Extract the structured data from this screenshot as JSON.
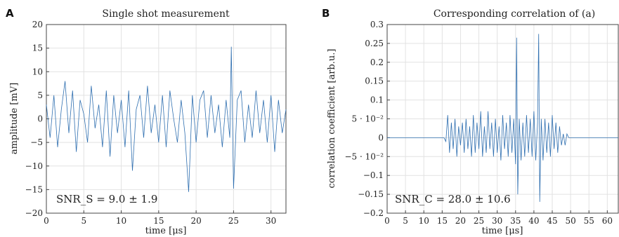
{
  "chart_data": [
    {
      "panel": "A",
      "type": "line",
      "title": "Single shot measurement",
      "xlabel": "time [μs]",
      "ylabel": "amplitude [mV]",
      "xlim": [
        0,
        32
      ],
      "ylim": [
        -20,
        20
      ],
      "xticks": [
        0,
        5,
        10,
        15,
        20,
        25,
        30
      ],
      "xtick_labels": [
        "0",
        "5",
        "10",
        "15",
        "20",
        "25",
        "30"
      ],
      "yticks": [
        -20,
        -15,
        -10,
        -5,
        0,
        5,
        10,
        15,
        20
      ],
      "ytick_labels": [
        "−20",
        "−15",
        "−10",
        "−5",
        "0",
        "5",
        "10",
        "15",
        "20"
      ],
      "grid": true,
      "annotation": "SNR_S = 9.0 ± 1.9",
      "series": [
        {
          "color": "#2f6fb0",
          "x": [
            0.0,
            0.5,
            1.0,
            1.5,
            2.0,
            2.5,
            3.0,
            3.5,
            4.0,
            4.5,
            5.0,
            5.5,
            6.0,
            6.5,
            7.0,
            7.5,
            8.0,
            8.5,
            9.0,
            9.5,
            10.0,
            10.5,
            11.0,
            11.5,
            12.0,
            12.5,
            13.0,
            13.5,
            14.0,
            14.5,
            15.0,
            15.5,
            16.0,
            16.5,
            17.0,
            17.5,
            18.0,
            18.5,
            19.0,
            19.5,
            20.0,
            20.5,
            21.0,
            21.5,
            22.0,
            22.5,
            23.0,
            23.5,
            24.0,
            24.5,
            24.7,
            25.0,
            25.5,
            26.0,
            26.5,
            27.0,
            27.5,
            28.0,
            28.5,
            29.0,
            29.5,
            30.0,
            30.5,
            31.0,
            31.5,
            32.0
          ],
          "y": [
            3,
            -4,
            5,
            -6,
            2,
            8,
            -3,
            6,
            -7,
            4,
            1,
            -5,
            7,
            -2,
            3,
            -6,
            6,
            -8,
            5,
            -3,
            4,
            -6,
            6,
            -11,
            2,
            5,
            -4,
            7,
            -3,
            3,
            -5,
            5,
            -6,
            6,
            0,
            -5,
            4,
            -3,
            -15.5,
            5,
            -5,
            4,
            6,
            -4,
            5,
            -3,
            3,
            -6,
            4,
            -4,
            15.3,
            -14.8,
            4,
            6,
            -5,
            3,
            -4,
            6,
            -3,
            4,
            -5,
            5,
            -7,
            4,
            -3,
            2
          ]
        }
      ]
    },
    {
      "panel": "B",
      "type": "line",
      "title": "Corresponding correlation of (a)",
      "xlabel": "time [μs]",
      "ylabel": "correlation coefficient [arb.u.]",
      "xlim": [
        0,
        63
      ],
      "ylim": [
        -0.2,
        0.3
      ],
      "xticks": [
        0,
        5,
        10,
        15,
        20,
        25,
        30,
        35,
        40,
        45,
        50,
        55,
        60
      ],
      "xtick_labels": [
        "0",
        "5",
        "10",
        "15",
        "20",
        "25",
        "30",
        "35",
        "40",
        "45",
        "50",
        "55",
        "60"
      ],
      "yticks": [
        -0.2,
        -0.15,
        -0.1,
        -0.05,
        0,
        0.05,
        0.1,
        0.15,
        0.2,
        0.25,
        0.3
      ],
      "ytick_labels": [
        "−0.2",
        "−0.15",
        "−0.1",
        "−5 · 10⁻²",
        "0",
        "5 · 10⁻²",
        "0.1",
        "0.15",
        "0.2",
        "0.25",
        "0.3"
      ],
      "grid": true,
      "annotation": "SNR_C = 28.0 ± 10.6",
      "series": [
        {
          "color": "#2f6fb0",
          "x": [
            0,
            15.5,
            16.0,
            16.5,
            17.0,
            17.5,
            18.0,
            18.5,
            19.0,
            19.5,
            20.0,
            20.5,
            21.0,
            21.5,
            22.0,
            22.5,
            23.0,
            23.5,
            24.0,
            24.5,
            25.0,
            25.5,
            26.0,
            26.5,
            27.0,
            27.5,
            28.0,
            28.5,
            29.0,
            29.5,
            30.0,
            30.5,
            31.0,
            31.5,
            32.0,
            32.5,
            33.0,
            33.5,
            34.0,
            34.5,
            35.0,
            35.3,
            35.6,
            36.0,
            36.5,
            37.0,
            37.5,
            38.0,
            38.5,
            39.0,
            39.5,
            40.0,
            40.5,
            41.0,
            41.3,
            41.6,
            42.0,
            42.5,
            43.0,
            43.5,
            44.0,
            44.5,
            45.0,
            45.5,
            46.0,
            46.5,
            47.0,
            47.5,
            48.0,
            48.5,
            49.0,
            49.5,
            63
          ],
          "y": [
            0,
            0,
            -0.01,
            0.06,
            -0.04,
            0.04,
            -0.03,
            0.05,
            -0.05,
            0.03,
            -0.02,
            0.04,
            -0.04,
            0.05,
            -0.03,
            0.03,
            -0.05,
            0.06,
            -0.04,
            0.04,
            -0.03,
            0.07,
            -0.05,
            0.03,
            -0.04,
            0.07,
            -0.03,
            0.04,
            -0.05,
            0.05,
            -0.04,
            0.03,
            -0.06,
            0.06,
            -0.03,
            0.04,
            -0.05,
            0.06,
            -0.04,
            0.05,
            -0.07,
            0.265,
            -0.15,
            0.05,
            -0.06,
            0.04,
            -0.05,
            0.06,
            -0.04,
            0.05,
            -0.05,
            0.07,
            -0.06,
            0.04,
            0.275,
            -0.17,
            0.05,
            -0.06,
            0.05,
            -0.04,
            0.04,
            -0.05,
            0.06,
            -0.03,
            0.04,
            -0.04,
            0.03,
            -0.02,
            0.01,
            -0.02,
            0.01,
            0,
            0
          ]
        }
      ]
    }
  ]
}
